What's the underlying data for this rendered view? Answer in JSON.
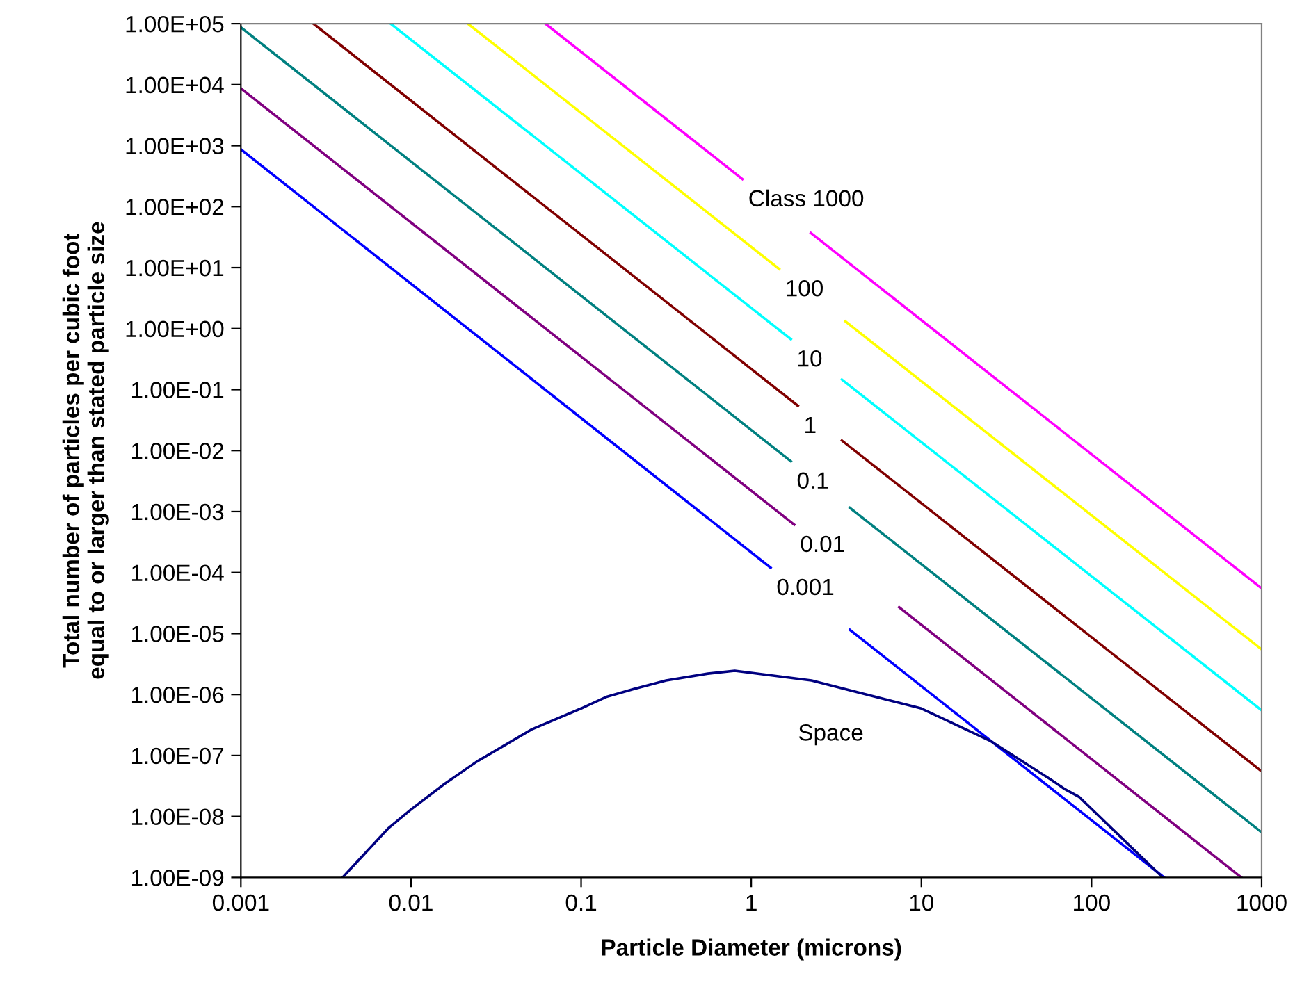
{
  "chart_data": {
    "type": "line",
    "xlabel": "Particle Diameter (microns)",
    "ylabel": "Total number of particles per cubic foot\nequal to or larger than stated particle size",
    "log": "xy",
    "xlim": [
      0.001,
      1000
    ],
    "xticks": [
      0.001,
      0.01,
      0.1,
      1,
      10,
      100,
      1000
    ],
    "ylim": [
      1e-09,
      100000
    ],
    "yticks": [
      {
        "value": 1e-09,
        "label": "1.00E-09"
      },
      {
        "value": 1e-08,
        "label": "1.00E-08"
      },
      {
        "value": 1e-07,
        "label": "1.00E-07"
      },
      {
        "value": 1e-06,
        "label": "1.00E-06"
      },
      {
        "value": 1e-05,
        "label": "1.00E-05"
      },
      {
        "value": 0.0001,
        "label": "1.00E-04"
      },
      {
        "value": 0.001,
        "label": "1.00E-03"
      },
      {
        "value": 0.01,
        "label": "1.00E-02"
      },
      {
        "value": 0.1,
        "label": "1.00E-01"
      },
      {
        "value": 1,
        "label": "1.00E+00"
      },
      {
        "value": 10,
        "label": "1.00E+01"
      },
      {
        "value": 100,
        "label": "1.00E+02"
      },
      {
        "value": 1000,
        "label": "1.00E+03"
      },
      {
        "value": 10000,
        "label": "1.00E+04"
      },
      {
        "value": 100000,
        "label": "1.00E+05"
      }
    ],
    "grid": false,
    "legend": false,
    "marker": "none",
    "line_style": "solid",
    "series": [
      {
        "name": "0.001",
        "color": "#0000ff",
        "x": [
          0.001,
          1.3,
          1.31,
          3.8,
          267
        ],
        "values": [
          870,
          0.00012,
          null,
          1.15e-05,
          1e-09
        ]
      },
      {
        "name": "0.01",
        "color": "#800080",
        "x": [
          0.001,
          1.79,
          1.8,
          7.4,
          760
        ],
        "values": [
          8700,
          0.00061,
          null,
          2.7e-05,
          1e-09
        ]
      },
      {
        "name": "0.1",
        "color": "#008080",
        "x": [
          0.001,
          1.71,
          1.72,
          3.8,
          1000
        ],
        "values": [
          87000,
          0.00668,
          null,
          0.00115,
          5.5e-09
        ]
      },
      {
        "name": "1",
        "color": "#800000",
        "x": [
          0.00267,
          1.88,
          1.89,
          3.41,
          1000
        ],
        "values": [
          100000,
          0.0543,
          null,
          0.0146,
          5.5e-08
        ]
      },
      {
        "name": "10",
        "color": "#00ffff",
        "x": [
          0.0076,
          1.71,
          1.72,
          3.41,
          1000
        ],
        "values": [
          100000,
          0.67,
          null,
          0.146,
          5.5e-07
        ]
      },
      {
        "name": "100",
        "color": "#ffff00",
        "x": [
          0.0216,
          1.46,
          1.47,
          3.57,
          1000
        ],
        "values": [
          100000,
          9.5,
          null,
          1.32,
          5.5e-06
        ]
      },
      {
        "name": "Class 1000",
        "color": "#ff00ff",
        "x": [
          0.0617,
          0.887,
          0.888,
          2.24,
          1000
        ],
        "values": [
          100000,
          283,
          null,
          37,
          5.5e-05
        ]
      },
      {
        "name": "Space",
        "color": "#000080",
        "x": [
          0.00396,
          0.0074,
          0.01,
          0.0157,
          0.0243,
          0.0515,
          0.1,
          0.14,
          0.204,
          0.316,
          0.556,
          0.8,
          2.26,
          10,
          25.4,
          57.8,
          69.8,
          84.4,
          253,
          260
        ],
        "values": [
          1e-09,
          6.5e-09,
          1.3e-08,
          3.4e-08,
          7.9e-08,
          2.7e-07,
          5.9e-07,
          9.1e-07,
          1.23e-06,
          1.7e-06,
          2.2e-06,
          2.45e-06,
          1.7e-06,
          5.9e-07,
          1.74e-07,
          4e-08,
          2.8e-08,
          2.1e-08,
          1.1e-09,
          1e-09
        ]
      }
    ]
  }
}
